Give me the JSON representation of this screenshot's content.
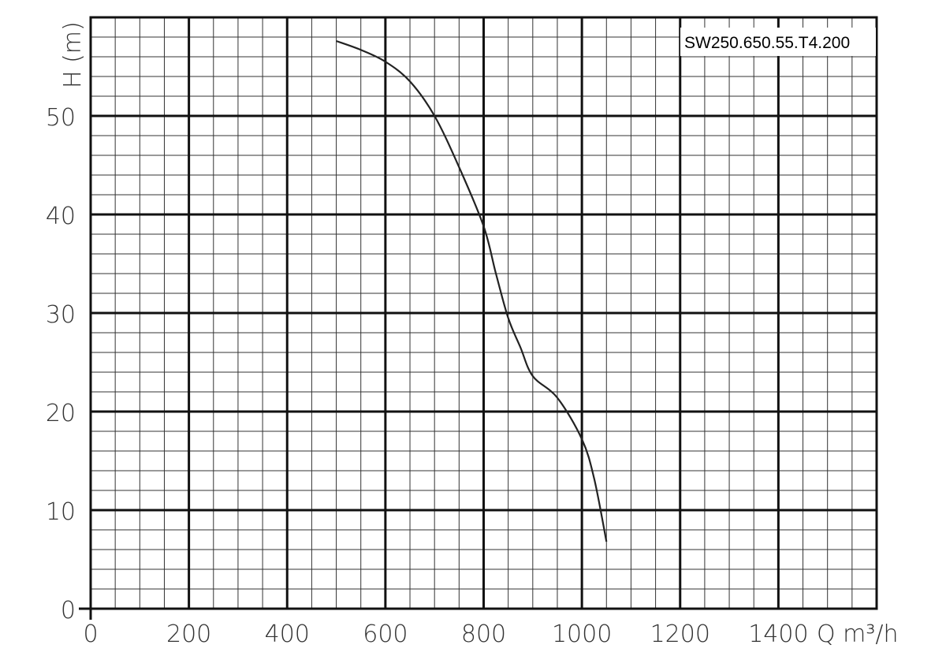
{
  "chart_data": {
    "type": "line",
    "title": "",
    "model_label": "SW250.650.55.T4.200",
    "xlabel": "Q m³/h",
    "ylabel": "H (m)",
    "xlim": [
      0,
      1600
    ],
    "ylim": [
      0,
      60
    ],
    "grid": true,
    "x_ticks": [
      0,
      200,
      400,
      600,
      800,
      1000,
      1200,
      1400
    ],
    "y_ticks": [
      0,
      10,
      20,
      30,
      40,
      50
    ],
    "x_tick_labels": [
      "0",
      "200",
      "400",
      "600",
      "800",
      "1000",
      "1200",
      "1400"
    ],
    "y_tick_labels": [
      "0",
      "10",
      "20",
      "30",
      "40",
      "50"
    ],
    "series": [
      {
        "name": "",
        "color": "#222222",
        "x": [
          500,
          550,
          600,
          650,
          700,
          750,
          800,
          825,
          850,
          875,
          900,
          950,
          1000,
          1025,
          1050
        ],
        "y": [
          57.6,
          56.7,
          55.5,
          53.5,
          50.0,
          44.8,
          38.8,
          34.0,
          29.5,
          26.5,
          23.6,
          21.4,
          17.2,
          13.2,
          6.8
        ]
      }
    ]
  }
}
